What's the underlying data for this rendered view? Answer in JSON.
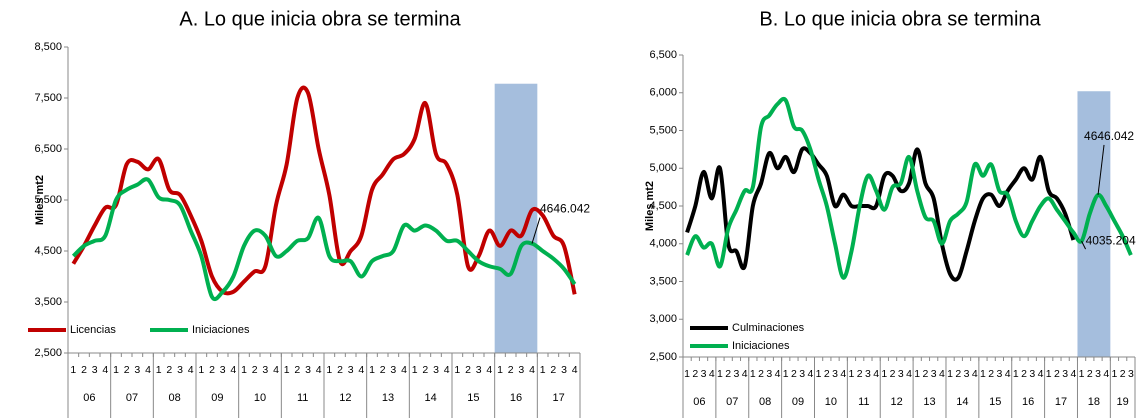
{
  "chart_data": [
    {
      "type": "line",
      "title": "A.   Lo que inicia obra se termina",
      "y_label": "Miles mt2",
      "categories": [
        "1",
        "2",
        "3",
        "4",
        "1",
        "2",
        "3",
        "4",
        "1",
        "2",
        "3",
        "4",
        "1",
        "2",
        "3",
        "4",
        "1",
        "2",
        "3",
        "4",
        "1",
        "2",
        "3",
        "4",
        "1",
        "2",
        "3",
        "4",
        "1",
        "2",
        "3",
        "4",
        "1",
        "2",
        "3",
        "4",
        "1",
        "2",
        "3",
        "4",
        "1",
        "2",
        "3",
        "4",
        "1",
        "2",
        "3",
        "4"
      ],
      "years": [
        "06",
        "07",
        "08",
        "09",
        "10",
        "11",
        "12",
        "13",
        "14",
        "15",
        "16",
        "17"
      ],
      "ylim": [
        2500,
        8500
      ],
      "yticks": [
        {
          "value": 2500,
          "label": "2,500"
        },
        {
          "value": 3500,
          "label": "3,500"
        },
        {
          "value": 4500,
          "label": "4,500"
        },
        {
          "value": 5500,
          "label": "5,500"
        },
        {
          "value": 6500,
          "label": "6,500"
        },
        {
          "value": 7500,
          "label": "7,500"
        },
        {
          "value": 8500,
          "label": "8,500"
        }
      ],
      "legend": "lower left",
      "series": [
        {
          "name": "Licencias",
          "color": "#c00000",
          "values": [
            4250,
            4600,
            5000,
            5350,
            5400,
            6200,
            6250,
            6100,
            6300,
            5700,
            5600,
            5200,
            4700,
            4000,
            3700,
            3700,
            3900,
            4100,
            4200,
            5400,
            6200,
            7500,
            7600,
            6500,
            5600,
            4300,
            4500,
            4800,
            5700,
            6000,
            6300,
            6400,
            6700,
            7400,
            6400,
            6200,
            5600,
            4200,
            4400,
            4900,
            4600,
            4900,
            4800,
            5300,
            5200,
            4800,
            4600,
            3650
          ]
        },
        {
          "name": "Iniciaciones",
          "color": "#00b050",
          "values": [
            4400,
            4600,
            4700,
            4800,
            5500,
            5700,
            5800,
            5900,
            5550,
            5500,
            5400,
            4900,
            4400,
            3600,
            3700,
            4000,
            4600,
            4900,
            4800,
            4400,
            4500,
            4700,
            4750,
            5150,
            4400,
            4300,
            4300,
            4000,
            4300,
            4400,
            4500,
            5000,
            4900,
            5000,
            4900,
            4700,
            4700,
            4500,
            4300,
            4200,
            4150,
            4050,
            4600,
            4646.042,
            4500,
            4350,
            4150,
            3850
          ]
        }
      ]
    },
    {
      "type": "line",
      "title": "B.   Lo que inicia obra se termina",
      "y_label": "Miles mt2",
      "categories": [
        "1",
        "2",
        "3",
        "4",
        "1",
        "2",
        "3",
        "4",
        "1",
        "2",
        "3",
        "4",
        "1",
        "2",
        "3",
        "4",
        "1",
        "2",
        "3",
        "4",
        "1",
        "2",
        "3",
        "4",
        "1",
        "2",
        "3",
        "4",
        "1",
        "2",
        "3",
        "4",
        "1",
        "2",
        "3",
        "4",
        "1",
        "2",
        "3",
        "4",
        "1",
        "2",
        "3",
        "4",
        "1",
        "2",
        "3",
        "4",
        "1",
        "2",
        "3",
        "4",
        "1",
        "2",
        "3"
      ],
      "years": [
        "06",
        "07",
        "08",
        "09",
        "10",
        "11",
        "12",
        "13",
        "14",
        "15",
        "16",
        "17",
        "18",
        "19"
      ],
      "ylim": [
        2500,
        6500
      ],
      "yticks": [
        {
          "value": 2500,
          "label": "2,500"
        },
        {
          "value": 3000,
          "label": "3,000"
        },
        {
          "value": 3500,
          "label": "3,500"
        },
        {
          "value": 4000,
          "label": "4,000"
        },
        {
          "value": 4500,
          "label": "4,500"
        },
        {
          "value": 5000,
          "label": "5,000"
        },
        {
          "value": 5500,
          "label": "5,500"
        },
        {
          "value": 6000,
          "label": "6,000"
        },
        {
          "value": 6500,
          "label": "6,500"
        }
      ],
      "legend": "lower left",
      "series": [
        {
          "name": "Culminaciones",
          "color": "#000000",
          "values": [
            4150,
            4500,
            4950,
            4600,
            5000,
            4000,
            3900,
            3700,
            4500,
            4800,
            5200,
            5000,
            5150,
            4950,
            5250,
            5200,
            5050,
            4900,
            4500,
            4650,
            4500,
            4500,
            4500,
            4500,
            4900,
            4900,
            4700,
            4800,
            5250,
            4800,
            4600,
            4000,
            3600,
            3550,
            3900,
            4300,
            4600,
            4650,
            4500,
            4700,
            4850,
            5000,
            4850,
            5150,
            4700,
            4600,
            4400,
            4050,
            null,
            null,
            null,
            null,
            null,
            null,
            null
          ]
        },
        {
          "name": "Iniciaciones",
          "color": "#00b050",
          "values": [
            3850,
            4100,
            3950,
            4000,
            3700,
            4200,
            4450,
            4700,
            4750,
            5550,
            5700,
            5850,
            5900,
            5550,
            5500,
            5250,
            4850,
            4500,
            4000,
            3550,
            3900,
            4500,
            4900,
            4700,
            4450,
            4750,
            4800,
            5150,
            4700,
            4350,
            4300,
            4000,
            4300,
            4400,
            4550,
            5050,
            4900,
            5050,
            4700,
            4650,
            4300,
            4100,
            4300,
            4500,
            4600,
            4450,
            4300,
            4150,
            4035.204,
            4400,
            4646.042,
            4500,
            4300,
            4100,
            3850
          ]
        }
      ]
    }
  ]
}
